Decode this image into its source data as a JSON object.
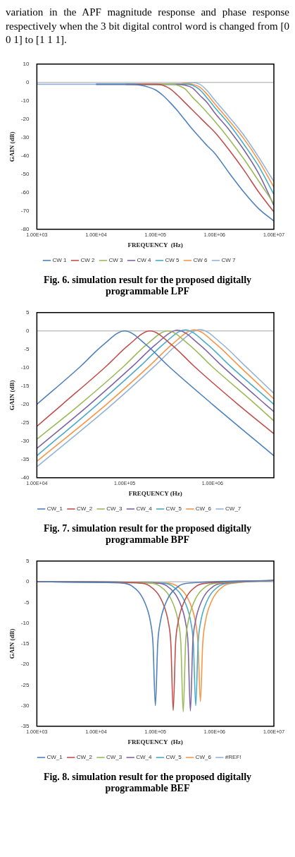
{
  "chart_data": [
    {
      "type": "other",
      "annotations": [
        "variation in the APF magnitude response and phase response respectively when the 3 bit digital control word is changed from [0 0 1] to [1 1 1]."
      ]
    },
    {
      "type": "line",
      "xlabel": "FREQUENCY  (Hz)",
      "ylabel": "GAIN (dB)",
      "log": "x",
      "legend": "bottom",
      "marker": "none",
      "line_style": "solid",
      "xlim": [
        1000,
        10000000
      ],
      "ylim": [
        -80,
        10
      ],
      "xticks": [
        {
          "value": 1000,
          "label": "1.00E+03"
        },
        {
          "value": 10000,
          "label": "1.00E+04"
        },
        {
          "value": 100000,
          "label": "1.00E+05"
        },
        {
          "value": 1000000,
          "label": "1.00E+06"
        },
        {
          "value": 10000000,
          "label": "1.00E+07"
        }
      ],
      "yticks": [
        10,
        0,
        -10,
        -20,
        -30,
        -40,
        -50,
        -60,
        -70,
        -80
      ],
      "x": [
        1000,
        10000,
        31623,
        56234,
        100000,
        133352,
        177828,
        237137,
        316228,
        421697,
        562341,
        749894,
        1000000,
        1778279,
        3162278,
        5623413,
        10000000
      ],
      "series": [
        {
          "name": "CW 1",
          "color": "#4f81bd",
          "values": [
            null,
            -1,
            -1,
            -1.5,
            -4,
            -7,
            -11,
            -15.5,
            -20.5,
            -25.5,
            -30,
            -34.5,
            -38.5,
            -49.5,
            -60,
            -69,
            -75.5
          ]
        },
        {
          "name": "CW 2",
          "color": "#c0504d",
          "values": [
            null,
            null,
            -1,
            -1,
            -1,
            -1.5,
            -3.5,
            -7,
            -11,
            -15,
            -19,
            -23,
            -27,
            -37,
            -48,
            -60,
            -70.5
          ]
        },
        {
          "name": "CW 3",
          "color": "#9bbb59",
          "values": [
            null,
            null,
            null,
            -1,
            -1,
            -1,
            -1,
            -1.5,
            -3.5,
            -8,
            -12,
            -16.5,
            -21,
            -31,
            -42,
            -54,
            -66
          ]
        },
        {
          "name": "CW 4",
          "color": "#8064a2",
          "values": [
            null,
            -1,
            -1,
            -1,
            -1,
            -1,
            -1,
            -1,
            -1.5,
            -3,
            -7,
            -11,
            -16.5,
            -26,
            -37,
            -50,
            -67
          ]
        },
        {
          "name": "CW 5",
          "color": "#4bacc6",
          "values": [
            null,
            null,
            -1,
            -1,
            -1,
            -1,
            -1,
            -1,
            -1,
            -1.5,
            -4,
            -8.5,
            -13.5,
            -23,
            -34,
            -46,
            -61
          ]
        },
        {
          "name": "CW 6",
          "color": "#f79646",
          "values": [
            null,
            null,
            null,
            null,
            null,
            null,
            null,
            -1,
            -0.5,
            -1,
            -2.5,
            -6.5,
            -11.5,
            -21,
            -31,
            -43,
            -57
          ]
        },
        {
          "name": "CW 7",
          "color": "#95b3d7",
          "values": [
            -1,
            -1,
            -1,
            -1,
            -1,
            -1,
            -1,
            -1,
            -0.5,
            0,
            -1,
            -4.5,
            -9.5,
            -19,
            -29,
            -41,
            -54
          ]
        }
      ],
      "ref_lines": [
        {
          "axis": "y",
          "value": 0,
          "color": "#a6a6a6"
        }
      ],
      "annotations": [
        "Fig. 6. simulation result for the proposed digitally programmable  LPF"
      ]
    },
    {
      "type": "line",
      "xlabel": "FREQUENCY (Hz)",
      "ylabel": "GAIN (dB)",
      "log": "x",
      "legend": "bottom",
      "marker": "none",
      "line_style": "solid",
      "xlim": [
        10000,
        5000000
      ],
      "ylim": [
        -40,
        5
      ],
      "xticks": [
        {
          "value": 10000,
          "label": "1.00E+04"
        },
        {
          "value": 100000,
          "label": "1.00E+05"
        },
        {
          "value": 1000000,
          "label": "1.00E+06"
        }
      ],
      "yticks": [
        5,
        0,
        -5,
        -10,
        -15,
        -20,
        -25,
        -30,
        -35,
        -40
      ],
      "series": [
        {
          "name": "CW_1",
          "color": "#4f81bd",
          "x": [
            10000,
            31600,
            56200,
            100000,
            178000,
            316000,
            1000000,
            5000000
          ],
          "values": [
            -20,
            -9.6,
            -3.9,
            0,
            -3.9,
            -9.6,
            -20,
            -34
          ]
        },
        {
          "name": "CW_2",
          "color": "#c0504d",
          "x": [
            10000,
            19500,
            61700,
            110000,
            195000,
            347000,
            617000,
            1950000,
            5000000
          ],
          "values": [
            -26,
            -20,
            -9.6,
            -3.9,
            0,
            -3.9,
            -9.6,
            -20,
            -28
          ]
        },
        {
          "name": "CW_3",
          "color": "#9bbb59",
          "x": [
            10000,
            31000,
            98000,
            174000,
            310000,
            551000,
            980000,
            3100000,
            5000000
          ],
          "values": [
            -29.5,
            -20,
            -9.6,
            -3.9,
            0,
            -3.9,
            -9.6,
            -20,
            -24.5
          ]
        },
        {
          "name": "CW_4",
          "color": "#8064a2",
          "x": [
            10000,
            40000,
            126000,
            225000,
            400000,
            711000,
            1265000,
            4000000,
            5000000
          ],
          "values": [
            -32,
            -20,
            -9.4,
            -3.7,
            0.2,
            -3.7,
            -9.4,
            -20,
            -22
          ]
        },
        {
          "name": "CW_5",
          "color": "#4bacc6",
          "x": [
            10000,
            49000,
            155000,
            276000,
            490000,
            871000,
            1549000,
            5000000
          ],
          "values": [
            -34,
            -20,
            -9.3,
            -3.6,
            0.3,
            -3.6,
            -9.3,
            -20
          ]
        },
        {
          "name": "CW_6",
          "color": "#f79646",
          "x": [
            10000,
            62000,
            196000,
            349000,
            620000,
            1102000,
            1960000,
            5000000
          ],
          "values": [
            -35.5,
            -20,
            -9.3,
            -3.6,
            0.3,
            -3.6,
            -9.3,
            -18.5
          ]
        },
        {
          "name": "CW_7",
          "color": "#95b3d7",
          "x": [
            10000,
            72000,
            228000,
            405000,
            720000,
            1280000,
            2277000,
            5000000
          ],
          "values": [
            -37,
            -20,
            -9.2,
            -3.5,
            0.4,
            -3.5,
            -9.2,
            -17
          ]
        }
      ],
      "ref_lines": [
        {
          "axis": "y",
          "value": 0,
          "color": "#a6a6a6"
        }
      ],
      "annotations": [
        "Fig. 7. simulation result for the proposed digitally programmable  BPF"
      ]
    },
    {
      "type": "line",
      "xlabel": "FREQUENCY  (Hz)",
      "ylabel": "GAIN (dB)",
      "log": "x",
      "legend": "bottom",
      "marker": "none",
      "line_style": "solid",
      "xlim": [
        1000,
        10000000
      ],
      "ylim": [
        -35,
        5
      ],
      "xticks": [
        {
          "value": 1000,
          "label": "1.00E+03"
        },
        {
          "value": 10000,
          "label": "1.00E+04"
        },
        {
          "value": 100000,
          "label": "1.00E+05"
        },
        {
          "value": 1000000,
          "label": "1.00E+06"
        },
        {
          "value": 10000000,
          "label": "1.00E+07"
        }
      ],
      "yticks": [
        5,
        0,
        -5,
        -10,
        -15,
        -20,
        -25,
        -30,
        -35
      ],
      "series": [
        {
          "name": "CW_1",
          "color": "#4f81bd",
          "x": [
            1000,
            25100,
            39800,
            66100,
            83200,
            91200,
            100000,
            109600,
            120200,
            151400,
            251200,
            398000,
            10000000
          ],
          "values": [
            0,
            -0.3,
            -1,
            -5,
            -10,
            -15,
            -30,
            -15,
            -10,
            -5,
            -1,
            -0.3,
            0.3
          ]
        },
        {
          "name": "CW_2",
          "color": "#c0504d",
          "x": [
            1000,
            50200,
            79600,
            132100,
            166400,
            182500,
            200000,
            219200,
            240400,
            302800,
            502400,
            796000,
            10000000
          ],
          "values": [
            0,
            -0.3,
            -1,
            -5,
            -10,
            -15,
            -31.2,
            -15,
            -10,
            -5,
            -1,
            -0.3,
            0.3
          ]
        },
        {
          "name": "CW_3",
          "color": "#9bbb59",
          "x": [
            1000,
            74100,
            117400,
            194800,
            245400,
            269200,
            295000,
            323300,
            354600,
            446600,
            741000,
            1174000,
            10000000
          ],
          "values": [
            0,
            -0.3,
            -1,
            -5,
            -10,
            -15,
            -31.5,
            -15,
            -10,
            -5,
            -1,
            -0.3,
            0.3
          ]
        },
        {
          "name": "CW_4",
          "color": "#8064a2",
          "x": [
            1000,
            98000,
            155300,
            257600,
            324500,
            355800,
            390000,
            427400,
            468800,
            590500,
            979700,
            1552000,
            10000000
          ],
          "values": [
            0,
            -0.3,
            -1,
            -5,
            -10,
            -15,
            -31.3,
            -15,
            -10,
            -5,
            -1,
            -0.3,
            0.3
          ]
        },
        {
          "name": "CW_5",
          "color": "#4bacc6",
          "x": [
            1000,
            120600,
            191100,
            317000,
            399300,
            438000,
            480000,
            526100,
            577000,
            726700,
            1206000,
            1910000,
            10000000
          ],
          "values": [
            0,
            -0.3,
            -1,
            -5,
            -10,
            -15,
            -30,
            -15,
            -10,
            -5,
            -1,
            -0.3,
            0.3
          ]
        },
        {
          "name": "CW_6",
          "color": "#f79646",
          "x": [
            1000,
            144500,
            228900,
            379800,
            478400,
            524600,
            575000,
            630200,
            691200,
            870600,
            1444000,
            2289000,
            10000000
          ],
          "values": [
            0,
            -0.3,
            -1,
            -5,
            -10,
            -15,
            -29,
            -15,
            -10,
            -5,
            -1,
            -0.3,
            0.3
          ]
        },
        {
          "name": "#REF!",
          "color": "#95b3d7"
        }
      ],
      "ref_lines": [
        {
          "axis": "y",
          "value": 0,
          "color": "#a6a6a6"
        }
      ],
      "annotations": [
        "Fig. 8. simulation result for the proposed digitally programmable  BEF"
      ]
    }
  ]
}
